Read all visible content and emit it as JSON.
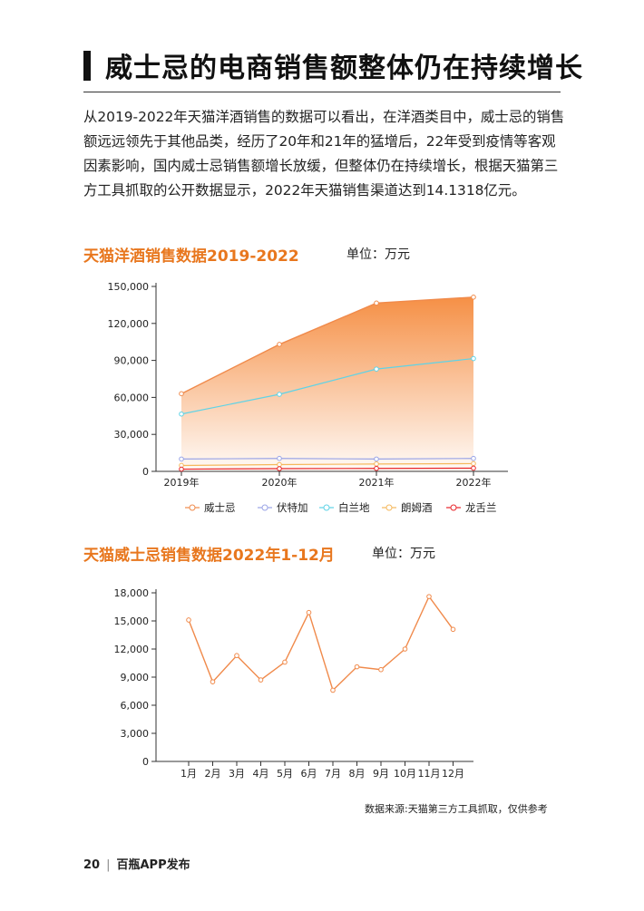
{
  "page_title": "威士忌的电商销售额整体仍在持续增长",
  "intro": "从2019-2022年天猫洋酒销售的数据可以看出，在洋酒类目中，威士忌的销售额远远领先于其他品类，经历了20年和21年的猛增后，22年受到疫情等客观因素影响，国内威士忌销售额增长放缓，但整体仍在持续增长，根据天猫第三方工具抓取的公开数据显示，2022年天猫销售渠道达到14.1318亿元。",
  "section1": {
    "title": "天猫洋酒销售数据2019-2022",
    "unit": "单位：万元"
  },
  "section2": {
    "title": "天猫威士忌销售数据2022年1-12月",
    "unit": "单位：万元"
  },
  "source": "数据来源:天猫第三方工具抓取，仅供参考",
  "footer": {
    "page_number": "20",
    "publisher": "百瓶APP发布"
  },
  "colors": {
    "accent": "#e8771e",
    "whisky": "#f08a4b",
    "vodka": "#9aa4e6",
    "brandy": "#5fd3e6",
    "rum": "#f5b85c",
    "gin": "#e8262b"
  },
  "chart_data": [
    {
      "type": "area",
      "categories": [
        "2019年",
        "2020年",
        "2021年",
        "2022年"
      ],
      "y_ticks": [
        "0",
        "30,000",
        "60,000",
        "90,000",
        "120,000",
        "150,000"
      ],
      "ylim": [
        0,
        150000
      ],
      "legend_position": "bottom",
      "series": [
        {
          "name": "威士忌",
          "values": [
            63000,
            103000,
            136500,
            141318
          ],
          "color": "#f08a4b",
          "fill": true
        },
        {
          "name": "伏特加",
          "values": [
            10000,
            10500,
            10000,
            10500
          ],
          "color": "#9aa4e6"
        },
        {
          "name": "白兰地",
          "values": [
            46500,
            62500,
            83000,
            91500
          ],
          "color": "#5fd3e6"
        },
        {
          "name": "朗姆酒",
          "values": [
            4800,
            5500,
            6000,
            6300
          ],
          "color": "#f5b85c"
        },
        {
          "name": "龙舌兰",
          "values": [
            1800,
            2200,
            2400,
            2600
          ],
          "color": "#e8262b"
        }
      ]
    },
    {
      "type": "line",
      "categories": [
        "1月",
        "2月",
        "3月",
        "4月",
        "5月",
        "6月",
        "7月",
        "8月",
        "9月",
        "10月",
        "11月",
        "12月"
      ],
      "y_ticks": [
        "0",
        "3,000",
        "6,000",
        "9,000",
        "12,000",
        "15,000",
        "18,000"
      ],
      "ylim": [
        0,
        18000
      ],
      "series": [
        {
          "values": [
            15100,
            8500,
            11300,
            8700,
            10600,
            15900,
            7600,
            10100,
            9800,
            12000,
            17600,
            14100
          ],
          "color": "#f08a4b"
        }
      ]
    }
  ]
}
